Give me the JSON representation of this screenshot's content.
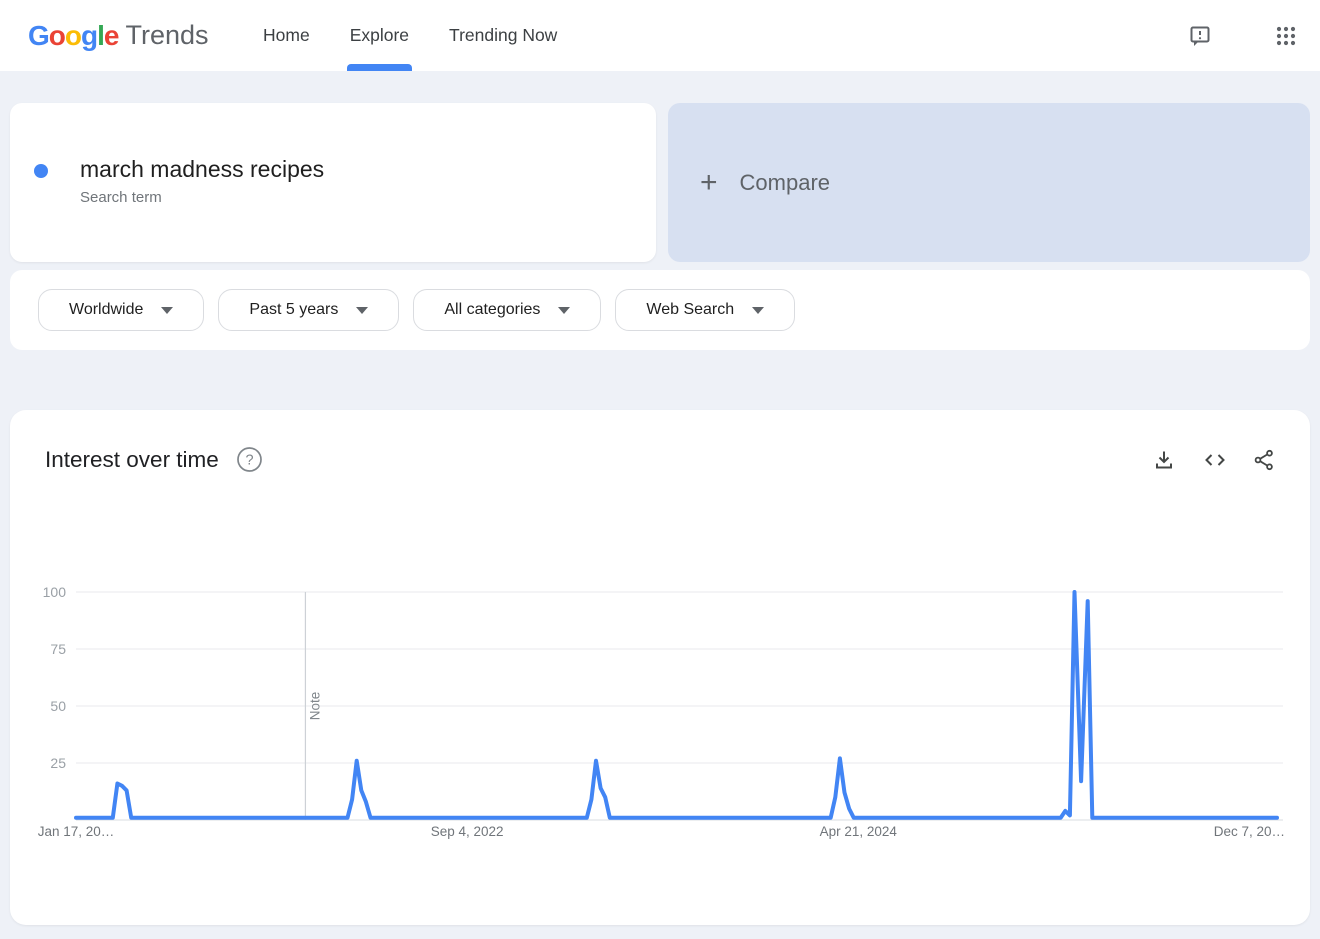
{
  "header": {
    "logo": {
      "letters": [
        "G",
        "o",
        "o",
        "g",
        "l",
        "e"
      ],
      "letter_colors": [
        "#4285F4",
        "#EA4335",
        "#FBBC05",
        "#4285F4",
        "#34A853",
        "#EA4335"
      ],
      "suffix": "Trends"
    },
    "nav": [
      {
        "label": "Home",
        "active": false
      },
      {
        "label": "Explore",
        "active": true
      },
      {
        "label": "Trending Now",
        "active": false
      }
    ],
    "icons": {
      "feedback": "speech-bubble-exclamation",
      "apps": "3x3-dot-grid"
    }
  },
  "query_card": {
    "term": "march madness recipes",
    "type_label": "Search term",
    "dot_color": "#4285f4"
  },
  "compare_card": {
    "plus": "+",
    "label": "Compare"
  },
  "filters": [
    {
      "label": "Worldwide"
    },
    {
      "label": "Past 5 years"
    },
    {
      "label": "All categories"
    },
    {
      "label": "Web Search"
    }
  ],
  "chart_section": {
    "title": "Interest over time",
    "icons": {
      "help": "question-circle",
      "download": "arrow-down-tray",
      "embed": "angle-brackets",
      "share": "share-nodes"
    }
  },
  "colors": {
    "accent_blue": "#4285f4",
    "line_blue": "#4285f4",
    "compare_card_bg": "#d7e0f1",
    "page_bg": "#eef1f7",
    "grid_line": "#e8eaed",
    "axis_text": "#9aa0a6"
  },
  "chart_data": {
    "type": "line",
    "title": "Interest over time",
    "grid": true,
    "legend": "none",
    "y_axis": {
      "range": [
        0,
        100
      ],
      "ticks": [
        25,
        50,
        75,
        100
      ]
    },
    "x_axis": {
      "start_date": "2021-01-17",
      "end_date": "2026-01-18",
      "ticks": [
        {
          "label": "Jan 17, 20…",
          "date": "2021-01-17"
        },
        {
          "label": "Sep 4, 2022",
          "date": "2022-09-04"
        },
        {
          "label": "Apr 21, 2024",
          "date": "2024-04-21"
        },
        {
          "label": "Dec 7, 20…",
          "date": "2025-12-07"
        }
      ]
    },
    "note_marker": {
      "label": "Note",
      "date": "2022-01-01"
    },
    "series": [
      {
        "name": "march madness recipes",
        "color": "#4285f4",
        "points": [
          [
            "2021-01-17",
            1
          ],
          [
            "2021-03-14",
            1
          ],
          [
            "2021-03-21",
            16
          ],
          [
            "2021-03-28",
            15
          ],
          [
            "2021-04-04",
            13
          ],
          [
            "2021-04-11",
            1
          ],
          [
            "2022-03-06",
            1
          ],
          [
            "2022-03-13",
            9
          ],
          [
            "2022-03-20",
            26
          ],
          [
            "2022-03-27",
            13
          ],
          [
            "2022-04-03",
            8
          ],
          [
            "2022-04-10",
            1
          ],
          [
            "2023-03-05",
            1
          ],
          [
            "2023-03-12",
            9
          ],
          [
            "2023-03-19",
            26
          ],
          [
            "2023-03-26",
            14
          ],
          [
            "2023-04-02",
            10
          ],
          [
            "2023-04-09",
            1
          ],
          [
            "2024-03-10",
            1
          ],
          [
            "2024-03-17",
            10
          ],
          [
            "2024-03-24",
            27
          ],
          [
            "2024-03-31",
            12
          ],
          [
            "2024-04-07",
            5
          ],
          [
            "2024-04-14",
            1
          ],
          [
            "2025-02-23",
            1
          ],
          [
            "2025-03-02",
            4
          ],
          [
            "2025-03-09",
            2
          ],
          [
            "2025-03-16",
            100
          ],
          [
            "2025-03-26",
            17
          ],
          [
            "2025-04-05",
            96
          ],
          [
            "2025-04-12",
            1
          ],
          [
            "2026-01-18",
            1
          ]
        ]
      }
    ]
  }
}
